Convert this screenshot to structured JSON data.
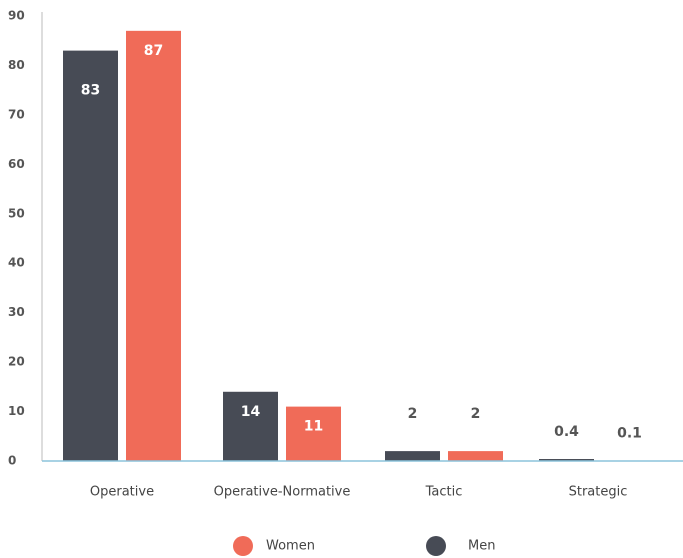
{
  "chart_data": {
    "type": "bar",
    "categories": [
      "Operative",
      "Operative-Normative",
      "Tactic",
      "Strategic"
    ],
    "series": [
      {
        "name": "Men",
        "color": "#474b55",
        "values": [
          83,
          14,
          2,
          0.4
        ]
      },
      {
        "name": "Women",
        "color": "#f06b58",
        "values": [
          87,
          11,
          2,
          0.1
        ]
      }
    ],
    "ylim": [
      0,
      90
    ],
    "yticks": [
      0,
      10,
      20,
      30,
      40,
      50,
      60,
      70,
      80,
      90
    ],
    "grid": false
  }
}
